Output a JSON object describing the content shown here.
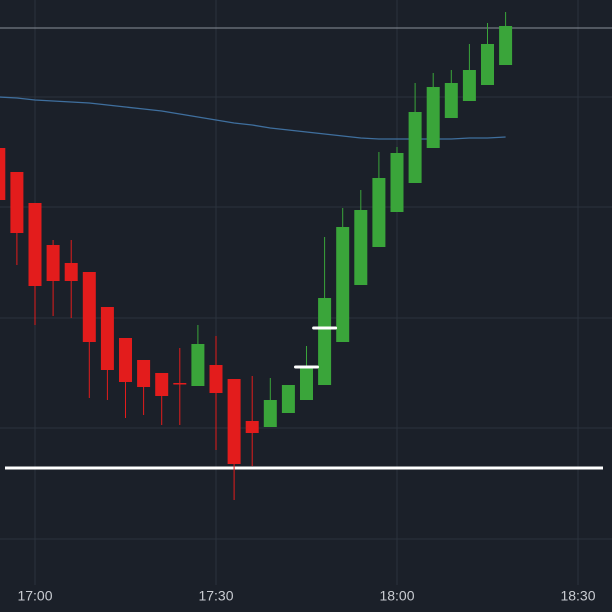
{
  "chart_data": {
    "type": "candlestick",
    "x": [
      "16:54",
      "16:57",
      "17:00",
      "17:03",
      "17:06",
      "17:09",
      "17:12",
      "17:15",
      "17:18",
      "17:21",
      "17:24",
      "17:27",
      "17:30",
      "17:33",
      "17:36",
      "17:39",
      "17:42",
      "17:45",
      "17:48",
      "17:51",
      "17:54",
      "17:57",
      "18:00",
      "18:03",
      "18:06",
      "18:09",
      "18:12",
      "18:15",
      "18:18"
    ],
    "open": [
      464,
      440,
      409,
      367,
      349,
      340,
      305,
      274,
      252,
      239,
      229,
      226,
      247,
      233,
      191,
      185,
      199,
      212,
      227,
      270,
      327,
      365,
      400,
      429,
      464,
      494,
      511,
      527,
      547
    ],
    "high": [
      470,
      440,
      409,
      372,
      372,
      340,
      305,
      274,
      252,
      239,
      264,
      287,
      276,
      233,
      236,
      234,
      227,
      266,
      375,
      404,
      422,
      460,
      465,
      529,
      539,
      542,
      568,
      589,
      600
    ],
    "low": [
      400,
      347,
      287,
      296,
      294,
      214,
      212,
      194,
      197,
      187,
      187,
      226,
      162,
      112,
      146,
      185,
      199,
      212,
      227,
      270,
      327,
      365,
      400,
      429,
      464,
      494,
      511,
      527,
      547
    ],
    "close": [
      412,
      379,
      326,
      331,
      331,
      270,
      242,
      230,
      225,
      216,
      228,
      268,
      219,
      148,
      179,
      212,
      227,
      245,
      314,
      385,
      402,
      434,
      459,
      500,
      525,
      529,
      542,
      568,
      586
    ],
    "up_color": "#3aa53a",
    "down_color": "#e31c1c",
    "ma": {
      "color": "#3f6f9e",
      "values": [
        515,
        514,
        512,
        511,
        510,
        509,
        507,
        505,
        503,
        501,
        498,
        495,
        492,
        489,
        487,
        484,
        482,
        480,
        478,
        476,
        474,
        473,
        473,
        473,
        473,
        473,
        474,
        474,
        475
      ]
    },
    "hlines": [
      {
        "value": 144,
        "color": "#ffffff"
      },
      {
        "value": 584,
        "color": "#8a9099"
      }
    ],
    "markers": [
      {
        "x": "17:45",
        "value": 245
      },
      {
        "x": "17:48",
        "value": 284
      }
    ],
    "xticks": [
      "17:00",
      "17:30",
      "18:00",
      "18:30"
    ],
    "ylim": [
      0,
      612
    ],
    "grid": true
  }
}
